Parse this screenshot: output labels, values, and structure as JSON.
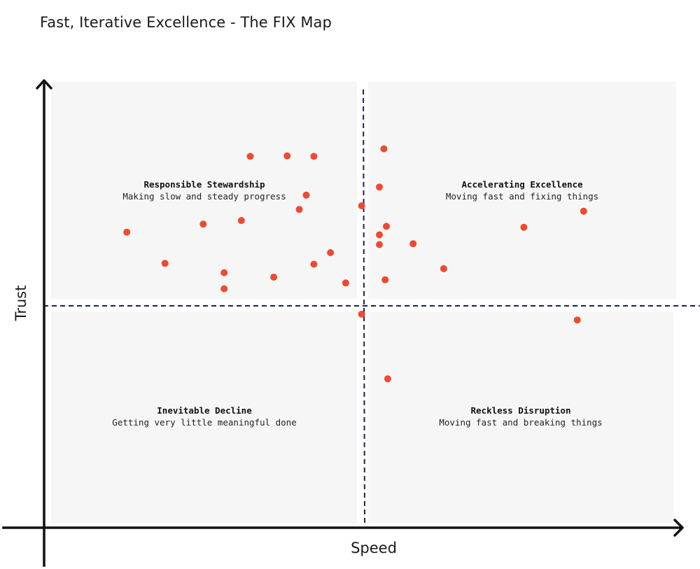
{
  "title": "Fast, Iterative Excellence - The FIX Map",
  "chart_data": {
    "type": "scatter",
    "title": "Fast, Iterative Excellence - The FIX Map",
    "xlabel": "Speed",
    "ylabel": "Trust",
    "xlim": [
      0,
      100
    ],
    "ylim": [
      0,
      100
    ],
    "divider_x": 50.5,
    "divider_y": 50,
    "grid": false,
    "colors": {
      "point": "#ee4a30",
      "divider": "#1c2250",
      "axis": "#111111",
      "quadrant_bg": "#f6f6f6"
    },
    "quadrants": [
      {
        "id": "top-left",
        "name": "Responsible Stewardship",
        "description": "Making slow and steady progress"
      },
      {
        "id": "top-right",
        "name": "Accelerating Excellence",
        "description": "Moving fast and fixing things"
      },
      {
        "id": "bottom-left",
        "name": "Inevitable Decline",
        "description": "Getting very little meaningful done"
      },
      {
        "id": "bottom-right",
        "name": "Reckless Disruption",
        "description": "Moving fast and breaking things"
      }
    ],
    "points": [
      {
        "x": 32.4,
        "y": 83.3
      },
      {
        "x": 38.2,
        "y": 83.4
      },
      {
        "x": 42.4,
        "y": 83.3
      },
      {
        "x": 53.4,
        "y": 85.0
      },
      {
        "x": 52.7,
        "y": 76.4
      },
      {
        "x": 41.2,
        "y": 74.6
      },
      {
        "x": 49.9,
        "y": 72.2
      },
      {
        "x": 40.1,
        "y": 71.4
      },
      {
        "x": 84.8,
        "y": 71.0
      },
      {
        "x": 31.0,
        "y": 68.9
      },
      {
        "x": 25.0,
        "y": 68.1
      },
      {
        "x": 13.0,
        "y": 66.3
      },
      {
        "x": 75.4,
        "y": 67.4
      },
      {
        "x": 53.8,
        "y": 67.6
      },
      {
        "x": 52.7,
        "y": 65.7
      },
      {
        "x": 58.0,
        "y": 63.7
      },
      {
        "x": 52.7,
        "y": 63.5
      },
      {
        "x": 45.0,
        "y": 61.7
      },
      {
        "x": 19.0,
        "y": 59.3
      },
      {
        "x": 42.4,
        "y": 59.1
      },
      {
        "x": 62.8,
        "y": 58.1
      },
      {
        "x": 28.3,
        "y": 57.2
      },
      {
        "x": 36.1,
        "y": 56.2
      },
      {
        "x": 53.6,
        "y": 55.6
      },
      {
        "x": 47.4,
        "y": 54.9
      },
      {
        "x": 28.3,
        "y": 53.6
      },
      {
        "x": 49.9,
        "y": 47.9
      },
      {
        "x": 83.8,
        "y": 46.6
      },
      {
        "x": 54.0,
        "y": 33.4
      }
    ]
  }
}
